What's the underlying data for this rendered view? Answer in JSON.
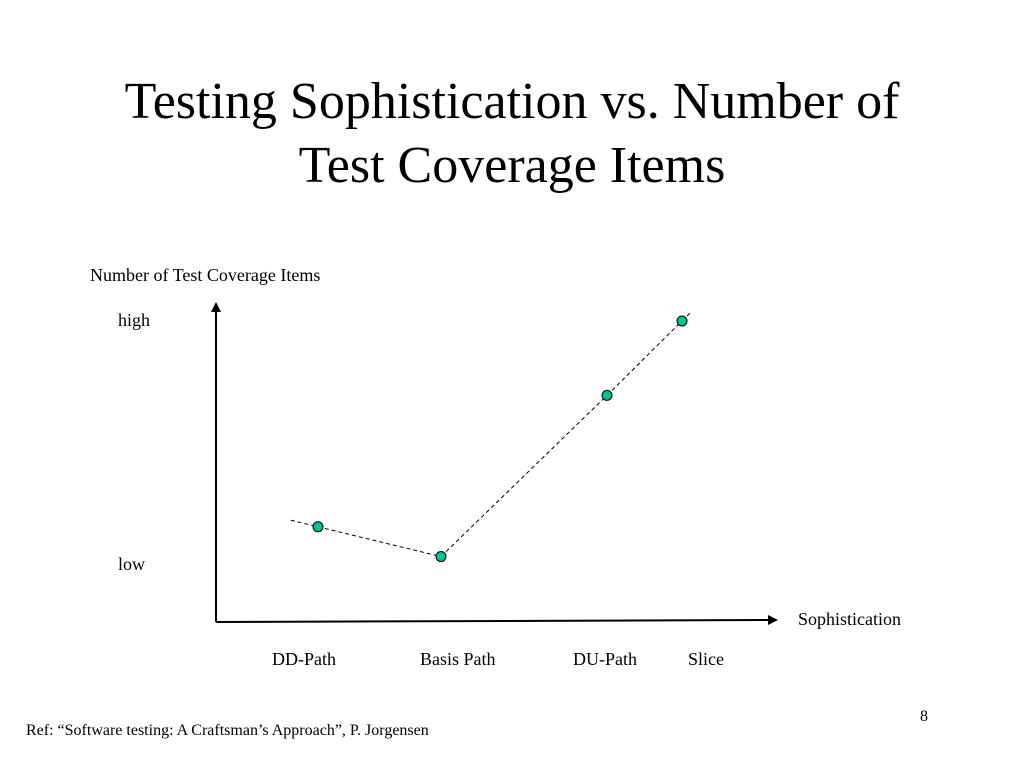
{
  "slide": {
    "title_line1": "Testing Sophistication vs. Number of",
    "title_line2": "Test Coverage Items",
    "footer_ref": "Ref: “Software testing: A Craftsman’s Approach”, P. Jorgensen",
    "page_number": "8"
  },
  "chart_data": {
    "type": "line",
    "title": "",
    "xlabel": "Sophistication",
    "ylabel": "Number of Test Coverage Items",
    "categories": [
      "DD-Path",
      "Basis Path",
      "DU-Path",
      "Slice"
    ],
    "y_tick_labels": [
      "high",
      "low"
    ],
    "ylim": [
      0,
      1
    ],
    "series": [
      {
        "name": "Test Coverage Items",
        "values": [
          0.15,
          0.03,
          0.68,
          0.98
        ]
      }
    ],
    "point_color": "#00c48c",
    "line_style": "dashed",
    "grid": false
  }
}
